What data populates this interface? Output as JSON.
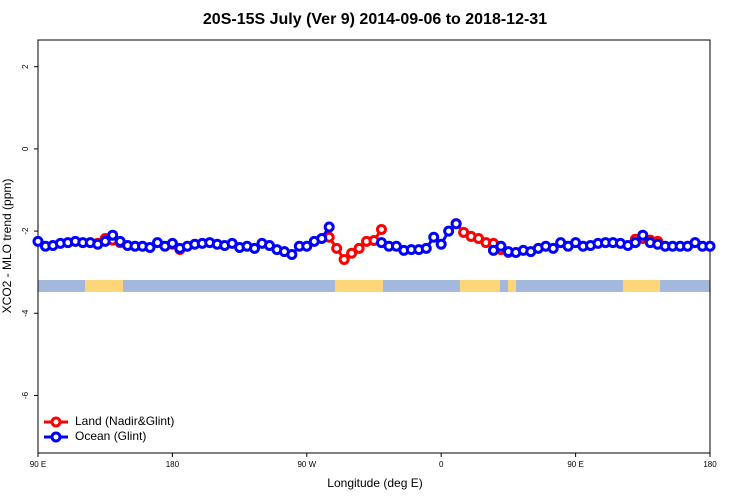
{
  "chart_data": {
    "type": "line",
    "title": "20S-15S July (Ver 9)   2014-09-06 to 2018-12-31",
    "x_label": "Longitude (deg E)",
    "y_label": "XCO2 - MLO trend (ppm)",
    "x": [
      90,
      95,
      100,
      105,
      110,
      115,
      120,
      125,
      130,
      135,
      140,
      145,
      150,
      155,
      160,
      165,
      170,
      175,
      180,
      185,
      190,
      195,
      200,
      205,
      210,
      215,
      220,
      225,
      230,
      235,
      240,
      245,
      250,
      255,
      260,
      265,
      270,
      275,
      280,
      285,
      290,
      295,
      300,
      305,
      310,
      315,
      320,
      325,
      330,
      335,
      340,
      345,
      350,
      355,
      360,
      365,
      370,
      375,
      380,
      385,
      390,
      395,
      400,
      405,
      410,
      415,
      420,
      425,
      430,
      435,
      440,
      445,
      450,
      455,
      460,
      465,
      470,
      475,
      480,
      485,
      490,
      495,
      500,
      505,
      510,
      515,
      520,
      525,
      530,
      535,
      540
    ],
    "xlim": [
      90,
      540
    ],
    "xticks": [
      {
        "value": 90,
        "label": "90 E"
      },
      {
        "value": 180,
        "label": "180"
      },
      {
        "value": 270,
        "label": "90 W"
      },
      {
        "value": 360,
        "label": "0"
      },
      {
        "value": 450,
        "label": "90 E"
      },
      {
        "value": 540,
        "label": "180"
      }
    ],
    "ylim": [
      -7.4,
      2.65
    ],
    "yticks": [
      2,
      0,
      -2,
      -4,
      -6
    ],
    "legend": "bottomleft",
    "series": [
      {
        "name": "Land (Nadir&Glint)",
        "color": "#ff0000",
        "values": [
          null,
          null,
          null,
          null,
          null,
          null,
          null,
          null,
          -2.3,
          -2.18,
          -2.22,
          -2.28,
          null,
          null,
          null,
          null,
          null,
          null,
          -2.32,
          -2.45,
          null,
          null,
          null,
          null,
          null,
          null,
          null,
          null,
          null,
          null,
          null,
          null,
          null,
          null,
          null,
          null,
          null,
          null,
          null,
          -2.15,
          -2.42,
          -2.69,
          -2.54,
          -2.42,
          -2.25,
          -2.23,
          -1.96,
          null,
          null,
          null,
          null,
          null,
          null,
          null,
          null,
          null,
          -1.82,
          -2.03,
          -2.13,
          -2.18,
          -2.28,
          -2.3,
          -2.45,
          -2.52,
          null,
          null,
          null,
          null,
          null,
          null,
          null,
          null,
          null,
          null,
          null,
          null,
          null,
          null,
          null,
          null,
          -2.2,
          -2.18,
          -2.22,
          -2.25,
          null,
          null,
          null,
          null,
          null,
          null,
          null
        ]
      },
      {
        "name": "Ocean (Glint)",
        "color": "#0000ff",
        "values": [
          -2.25,
          -2.37,
          -2.35,
          -2.3,
          -2.28,
          -2.25,
          -2.28,
          -2.28,
          -2.32,
          -2.25,
          -2.1,
          -2.25,
          -2.35,
          -2.37,
          -2.37,
          -2.4,
          -2.28,
          -2.37,
          -2.3,
          -2.42,
          -2.37,
          -2.32,
          -2.3,
          -2.28,
          -2.32,
          -2.35,
          -2.3,
          -2.4,
          -2.37,
          -2.42,
          -2.3,
          -2.35,
          -2.45,
          -2.5,
          -2.57,
          -2.37,
          -2.37,
          -2.25,
          -2.18,
          -1.9,
          null,
          null,
          null,
          null,
          null,
          null,
          -2.28,
          -2.37,
          -2.37,
          -2.47,
          -2.45,
          -2.45,
          -2.42,
          -2.15,
          -2.32,
          -2.0,
          -1.82,
          null,
          null,
          null,
          null,
          -2.47,
          -2.37,
          -2.5,
          -2.52,
          -2.47,
          -2.5,
          -2.42,
          -2.37,
          -2.42,
          -2.28,
          -2.37,
          -2.28,
          -2.37,
          -2.35,
          -2.3,
          -2.28,
          -2.28,
          -2.3,
          -2.35,
          -2.28,
          -2.1,
          -2.28,
          -2.32,
          -2.37,
          -2.37,
          -2.37,
          -2.37,
          -2.28,
          -2.37,
          -2.37
        ]
      }
    ]
  }
}
